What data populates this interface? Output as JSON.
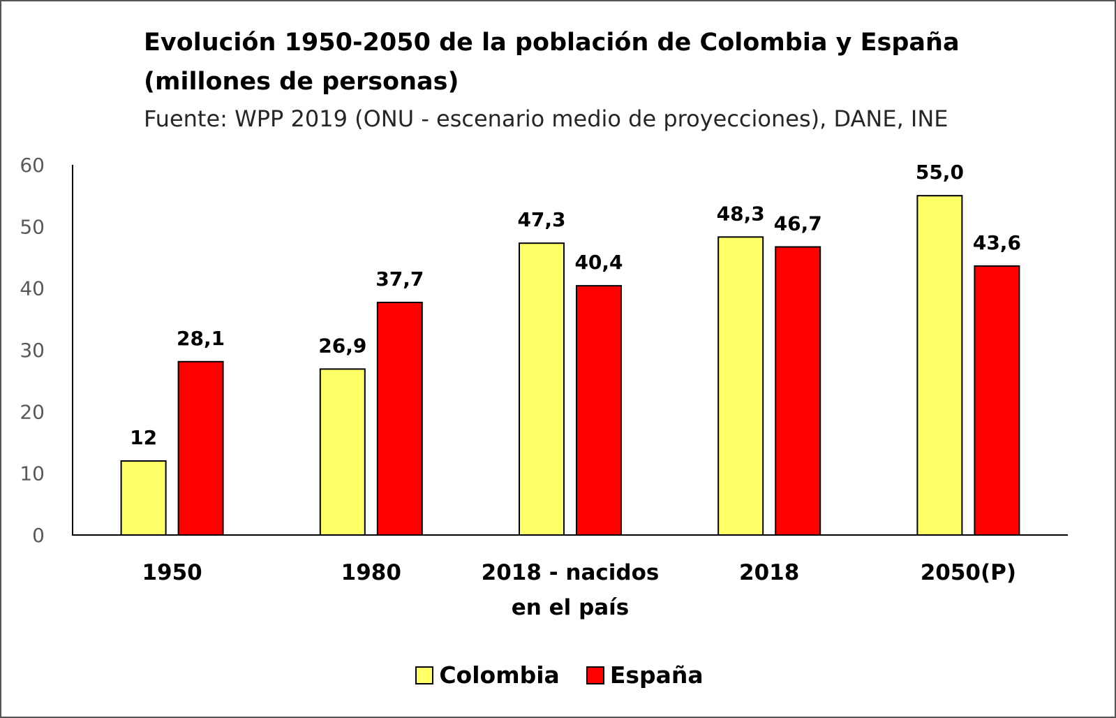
{
  "chart_data": {
    "type": "bar",
    "title": "Evolución  1950-2050 de la  población  de Colombia  y España",
    "subtitle": "(millones de personas)",
    "source": "Fuente: WPP 2019  (ONU - escenario medio de proyecciones), DANE, INE",
    "categories": [
      [
        "1950"
      ],
      [
        "1980"
      ],
      [
        "2018 - nacidos",
        "en el país"
      ],
      [
        "2018"
      ],
      [
        "2050(P)"
      ]
    ],
    "series": [
      {
        "name": "Colombia",
        "color": "#FFFF66",
        "values": [
          12,
          26.9,
          47.3,
          48.3,
          55.0
        ],
        "labels": [
          "12",
          "26,9",
          "47,3",
          "48,3",
          "55,0"
        ]
      },
      {
        "name": "España",
        "color": "#FF0000",
        "values": [
          28.1,
          37.7,
          40.4,
          46.7,
          43.6
        ],
        "labels": [
          "28,1",
          "37,7",
          "40,4",
          "46,7",
          "43,6"
        ]
      }
    ],
    "ylim": [
      0,
      60
    ],
    "yticks": [
      "0",
      "10",
      "20",
      "30",
      "40",
      "50",
      "60"
    ],
    "grid": false,
    "legend_position": "bottom"
  }
}
